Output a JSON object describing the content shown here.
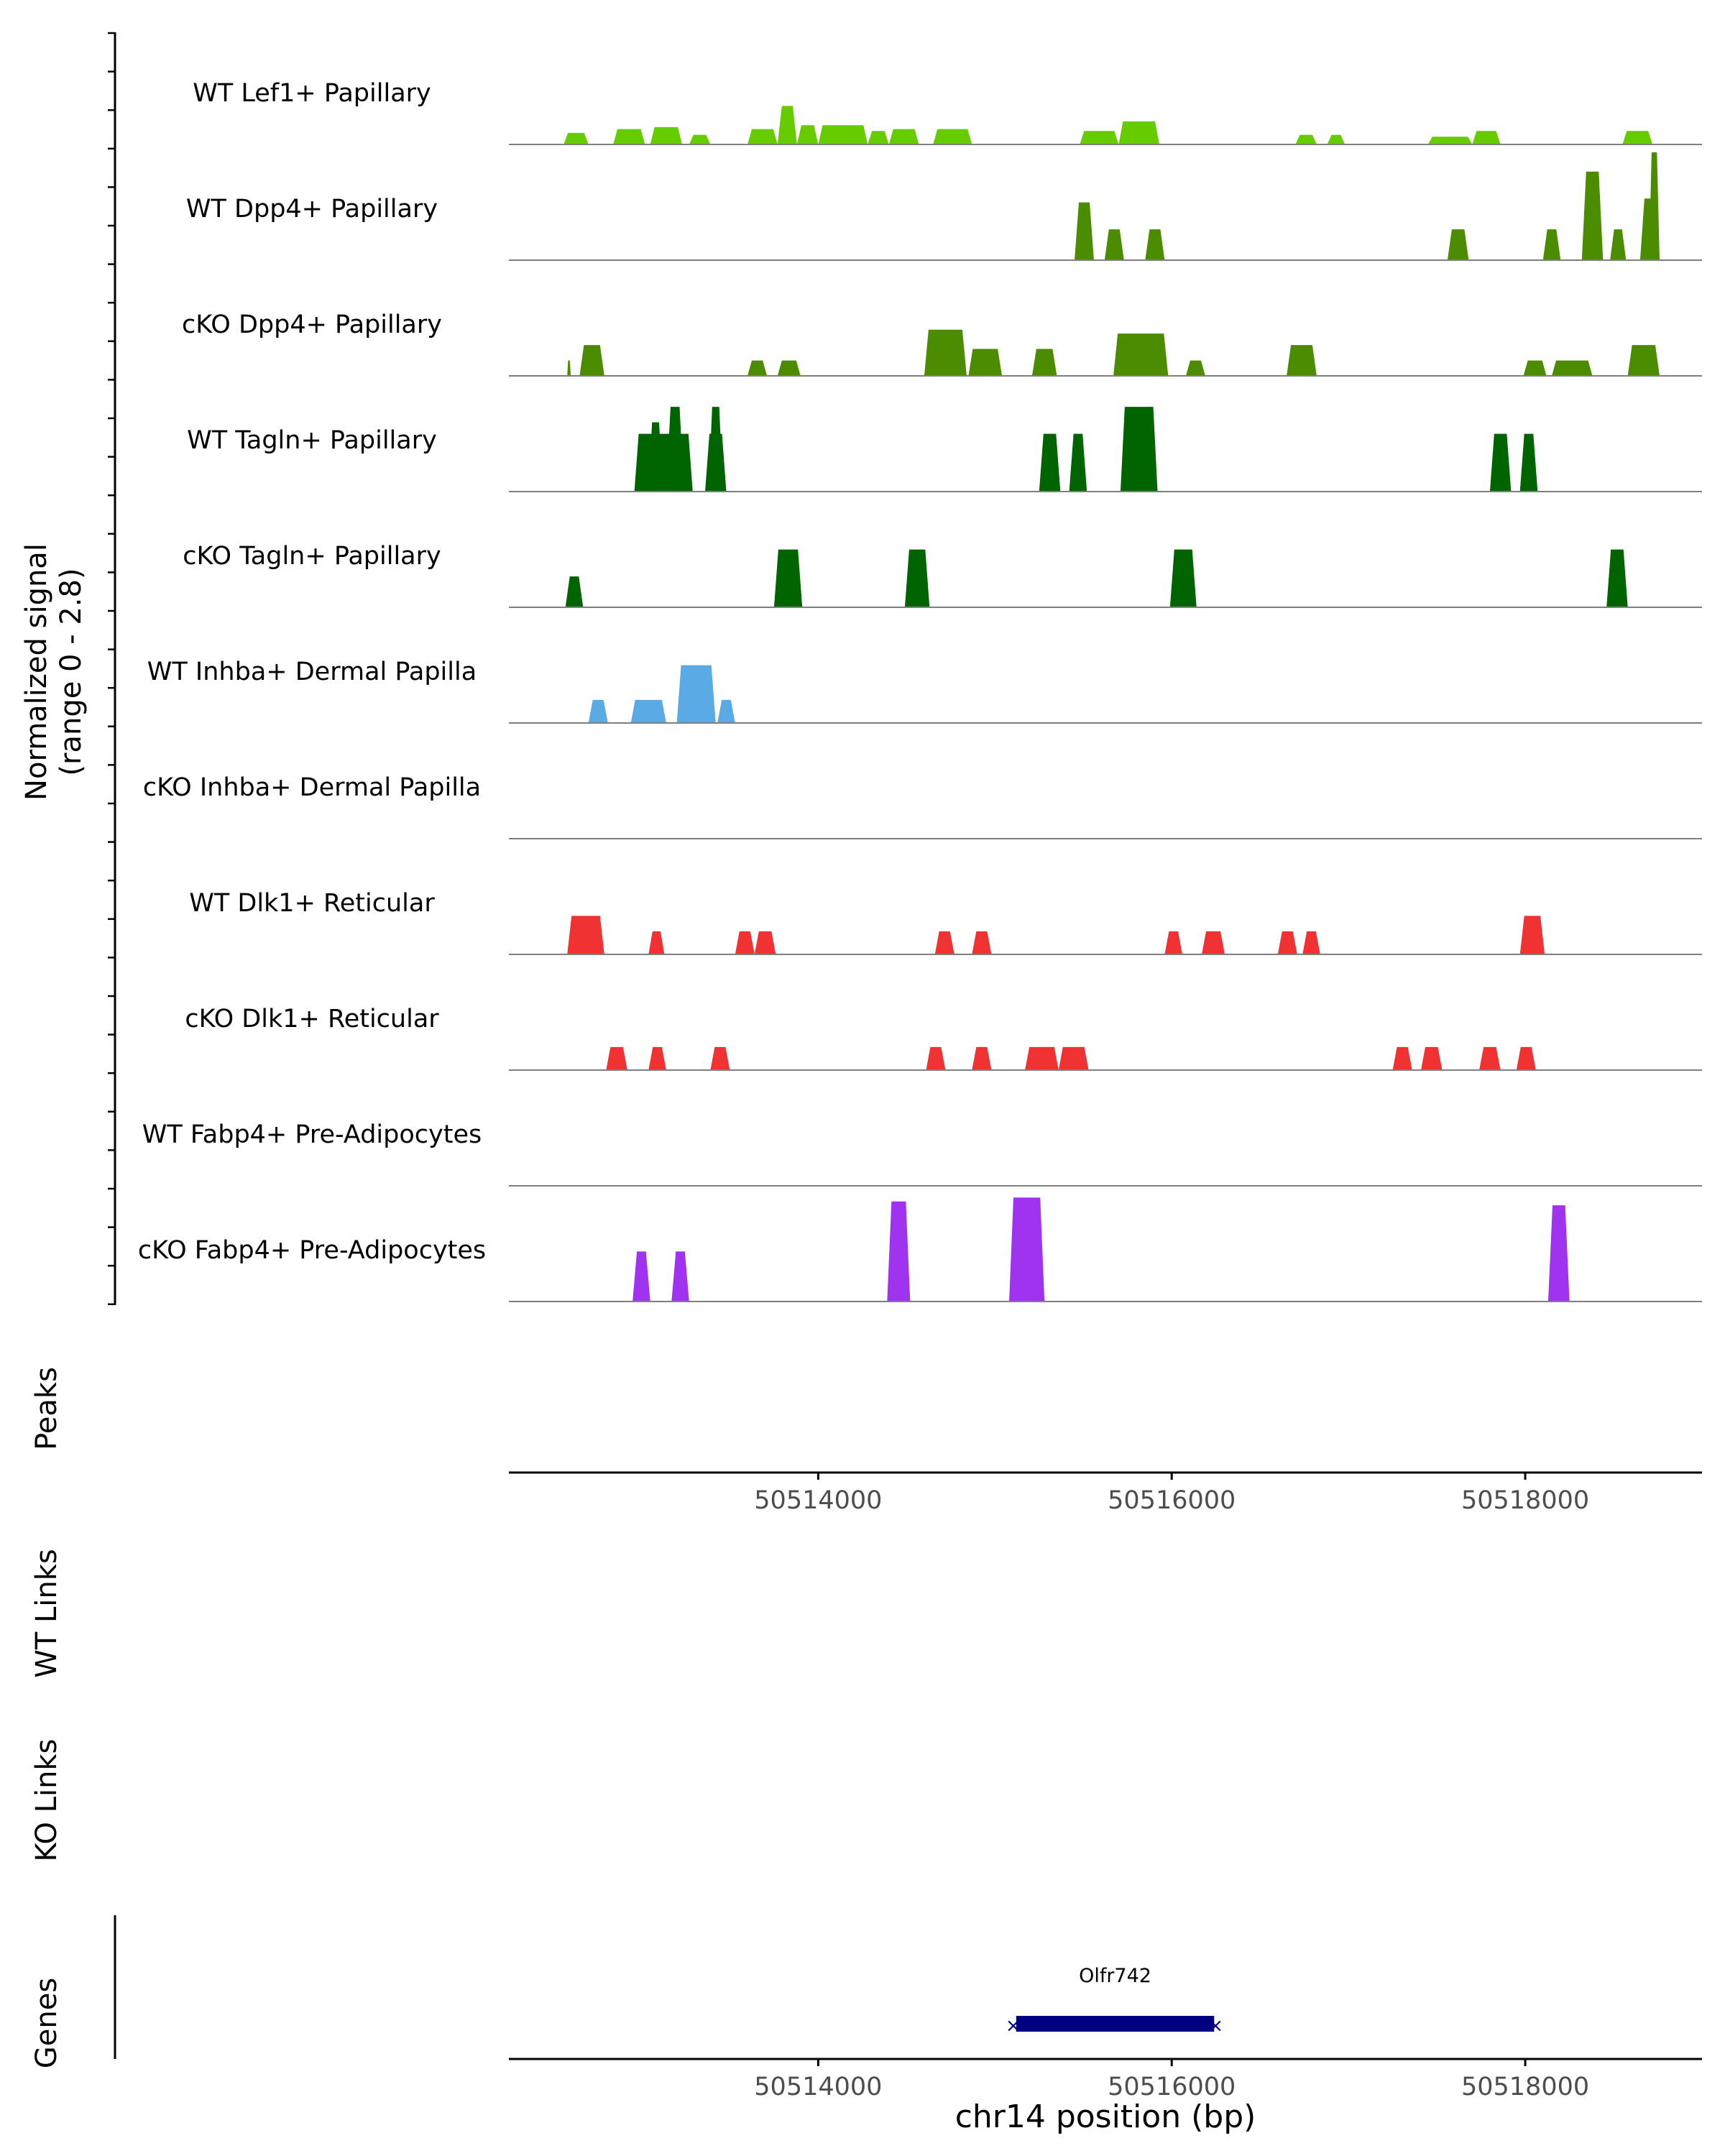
{
  "chart_data": {
    "type": "area",
    "title": "",
    "ylabel_line1": "Normalized signal",
    "ylabel_line2": "(range 0 - 2.8)",
    "xlabel": "chr14 position (bp)",
    "xlim": [
      50512250,
      50519000
    ],
    "ylim": [
      0,
      2.8
    ],
    "xticks": [
      50514000,
      50516000,
      50518000
    ],
    "xtick_labels": [
      "50514000",
      "50516000",
      "50518000"
    ],
    "panel_labels": {
      "peaks": "Peaks",
      "wt_links": "WT Links",
      "ko_links": "KO Links",
      "genes": "Genes"
    },
    "tracks": [
      {
        "name": "WT Lef1+ Papillary",
        "color": "#66CC00",
        "segments": [
          [
            50512560,
            50512700,
            0.3
          ],
          [
            50512840,
            50513020,
            0.4
          ],
          [
            50513050,
            50513230,
            0.45
          ],
          [
            50513270,
            50513390,
            0.25
          ],
          [
            50513600,
            50513770,
            0.4
          ],
          [
            50513770,
            50513880,
            1.0
          ],
          [
            50513880,
            50514000,
            0.5
          ],
          [
            50514000,
            50514280,
            0.5
          ],
          [
            50514280,
            50514400,
            0.35
          ],
          [
            50514400,
            50514570,
            0.4
          ],
          [
            50514650,
            50514870,
            0.4
          ],
          [
            50515480,
            50515700,
            0.35
          ],
          [
            50515700,
            50515930,
            0.6
          ],
          [
            50516700,
            50516820,
            0.25
          ],
          [
            50516880,
            50516980,
            0.25
          ],
          [
            50517450,
            50517700,
            0.2
          ],
          [
            50517700,
            50517860,
            0.35
          ],
          [
            50518550,
            50518720,
            0.35
          ]
        ]
      },
      {
        "name": "WT Dpp4+ Papillary",
        "color": "#4C8C00",
        "segments": [
          [
            50515450,
            50515560,
            1.5
          ],
          [
            50515620,
            50515730,
            0.8
          ],
          [
            50515850,
            50515960,
            0.8
          ],
          [
            50517560,
            50517680,
            0.8
          ],
          [
            50518100,
            50518200,
            0.8
          ],
          [
            50518320,
            50518440,
            2.3
          ],
          [
            50518480,
            50518570,
            0.8
          ],
          [
            50518650,
            50518760,
            1.6
          ],
          [
            50518700,
            50518760,
            2.8
          ]
        ]
      },
      {
        "name": "cKO Dpp4+ Papillary",
        "color": "#4C8C00",
        "segments": [
          [
            50512580,
            50512600,
            0.4
          ],
          [
            50512650,
            50512790,
            0.8
          ],
          [
            50513600,
            50513710,
            0.4
          ],
          [
            50513770,
            50513900,
            0.4
          ],
          [
            50514600,
            50514840,
            1.2
          ],
          [
            50514850,
            50515040,
            0.7
          ],
          [
            50515210,
            50515350,
            0.7
          ],
          [
            50515670,
            50515980,
            1.1
          ],
          [
            50516080,
            50516190,
            0.4
          ],
          [
            50516650,
            50516820,
            0.8
          ],
          [
            50517990,
            50518120,
            0.4
          ],
          [
            50518150,
            50518380,
            0.4
          ],
          [
            50518580,
            50518760,
            0.8
          ]
        ]
      },
      {
        "name": "WT Tagln+ Papillary",
        "color": "#006400",
        "segments": [
          [
            50512960,
            50513290,
            1.5
          ],
          [
            50513040,
            50513120,
            1.8
          ],
          [
            50513140,
            50513240,
            2.2
          ],
          [
            50513360,
            50513480,
            1.5
          ],
          [
            50513380,
            50513460,
            2.2
          ],
          [
            50515250,
            50515370,
            1.5
          ],
          [
            50515420,
            50515520,
            1.5
          ],
          [
            50515710,
            50515920,
            2.2
          ],
          [
            50517800,
            50517920,
            1.5
          ],
          [
            50517970,
            50518070,
            1.5
          ]
        ]
      },
      {
        "name": "cKO Tagln+ Papillary",
        "color": "#006400",
        "segments": [
          [
            50512570,
            50512670,
            0.8
          ],
          [
            50513750,
            50513910,
            1.5
          ],
          [
            50514490,
            50514630,
            1.5
          ],
          [
            50515990,
            50516140,
            1.5
          ],
          [
            50518460,
            50518580,
            1.5
          ]
        ]
      },
      {
        "name": "WT Inhba+ Dermal Papilla",
        "color": "#5AAAE6",
        "segments": [
          [
            50512700,
            50512810,
            0.6
          ],
          [
            50512940,
            50513140,
            0.6
          ],
          [
            50513200,
            50513420,
            1.5
          ],
          [
            50513430,
            50513530,
            0.6
          ]
        ]
      },
      {
        "name": "cKO Inhba+ Dermal Papilla",
        "color": "#5AAAE6",
        "segments": []
      },
      {
        "name": "WT Dlk1+ Reticular",
        "color": "#F03232",
        "segments": [
          [
            50512580,
            50512790,
            1.0
          ],
          [
            50513040,
            50513130,
            0.6
          ],
          [
            50513530,
            50513640,
            0.6
          ],
          [
            50513640,
            50513760,
            0.6
          ],
          [
            50514660,
            50514770,
            0.6
          ],
          [
            50514870,
            50514980,
            0.6
          ],
          [
            50515960,
            50516060,
            0.6
          ],
          [
            50516170,
            50516300,
            0.6
          ],
          [
            50516600,
            50516710,
            0.6
          ],
          [
            50516740,
            50516840,
            0.6
          ],
          [
            50517970,
            50518110,
            1.0
          ]
        ]
      },
      {
        "name": "cKO Dlk1+ Reticular",
        "color": "#F03232",
        "segments": [
          [
            50512800,
            50512920,
            0.6
          ],
          [
            50513040,
            50513140,
            0.6
          ],
          [
            50513390,
            50513500,
            0.6
          ],
          [
            50514610,
            50514720,
            0.6
          ],
          [
            50514870,
            50514980,
            0.6
          ],
          [
            50515170,
            50515360,
            0.6
          ],
          [
            50515360,
            50515530,
            0.6
          ],
          [
            50517250,
            50517360,
            0.6
          ],
          [
            50517410,
            50517530,
            0.6
          ],
          [
            50517740,
            50517860,
            0.6
          ],
          [
            50517950,
            50518060,
            0.6
          ]
        ]
      },
      {
        "name": "WT Fabp4+ Pre-Adipocytes",
        "color": "#A033F0",
        "segments": []
      },
      {
        "name": "cKO Fabp4+ Pre-Adipocytes",
        "color": "#A033F0",
        "segments": [
          [
            50512950,
            50513050,
            1.3
          ],
          [
            50513170,
            50513270,
            1.3
          ],
          [
            50514390,
            50514520,
            2.6
          ],
          [
            50515080,
            50515280,
            2.7
          ],
          [
            50518130,
            50518250,
            2.5
          ]
        ]
      }
    ],
    "genes": [
      {
        "name": "Olfr742",
        "start": 50515120,
        "end": 50516240,
        "color": "#000080",
        "strand": "-"
      }
    ]
  }
}
